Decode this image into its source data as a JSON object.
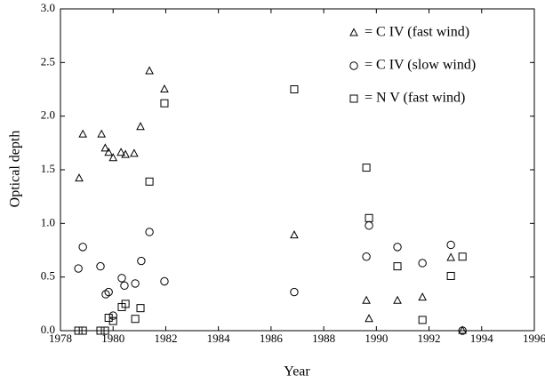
{
  "chart_data": {
    "type": "scatter",
    "xlabel": "Year",
    "ylabel": "Optical depth",
    "xlim": [
      1978,
      1996
    ],
    "xticks": [
      1978,
      1980,
      1982,
      1984,
      1986,
      1988,
      1990,
      1992,
      1994,
      1996
    ],
    "ylim": [
      0,
      3.0
    ],
    "yticks": [
      {
        "value": 0,
        "label": "0.0"
      },
      0.5,
      {
        "value": 1,
        "label": "1.0"
      },
      1.5,
      {
        "value": 2,
        "label": "2.0"
      },
      2.5,
      {
        "value": 3,
        "label": "3.0"
      }
    ],
    "legend": "upper right",
    "series": [
      {
        "name": "= C IV (fast wind)",
        "color": "#000000",
        "marker": "triangle",
        "x": [
          1978.71,
          1978.85,
          1979.56,
          1979.7,
          1979.83,
          1980.0,
          1980.3,
          1980.47,
          1980.8,
          1981.04,
          1981.38,
          1981.95,
          1986.88,
          1989.62,
          1989.72,
          1990.8,
          1991.75,
          1992.83,
          1993.27
        ],
        "values": [
          1.42,
          1.83,
          1.83,
          1.7,
          1.66,
          1.61,
          1.66,
          1.64,
          1.65,
          1.9,
          2.42,
          2.25,
          0.89,
          0.28,
          0.11,
          0.28,
          0.31,
          0.68,
          0.0
        ]
      },
      {
        "name": "= C IV (slow wind)",
        "color": "#000000",
        "marker": "circle",
        "x": [
          1978.68,
          1978.85,
          1979.52,
          1979.72,
          1979.83,
          1980.0,
          1980.33,
          1980.43,
          1980.84,
          1981.07,
          1981.38,
          1981.95,
          1986.88,
          1989.62,
          1989.72,
          1990.8,
          1991.75,
          1992.83,
          1993.27
        ],
        "values": [
          0.58,
          0.78,
          0.6,
          0.34,
          0.36,
          0.14,
          0.49,
          0.42,
          0.44,
          0.65,
          0.92,
          0.46,
          0.36,
          0.69,
          0.98,
          0.78,
          0.63,
          0.8,
          0.0
        ]
      },
      {
        "name": "= N V (fast wind)",
        "color": "#000000",
        "marker": "square",
        "x": [
          1978.68,
          1978.85,
          1979.52,
          1979.69,
          1979.83,
          1980.0,
          1980.33,
          1980.47,
          1980.84,
          1981.04,
          1981.38,
          1981.95,
          1986.88,
          1989.62,
          1989.72,
          1990.8,
          1991.75,
          1992.83,
          1993.27
        ],
        "values": [
          0.0,
          0.0,
          0.0,
          0.0,
          0.12,
          0.09,
          0.22,
          0.25,
          0.11,
          0.21,
          1.39,
          2.12,
          2.25,
          1.52,
          1.05,
          0.6,
          0.1,
          0.51,
          0.69
        ]
      }
    ]
  }
}
